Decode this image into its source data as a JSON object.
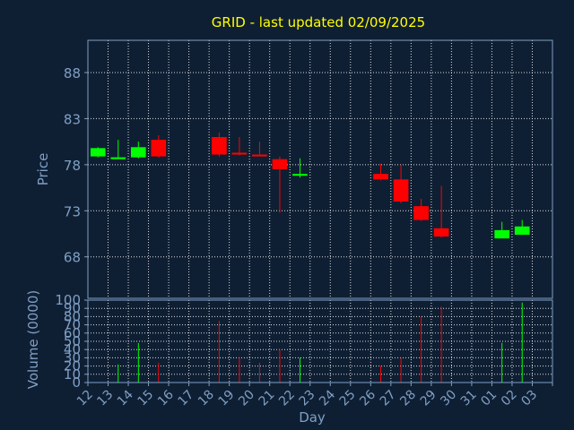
{
  "page": {
    "background": "#0f1f33",
    "text_color": "#7f9fc4",
    "title_color": "#ffff00",
    "grid_color": "#ffffff",
    "up_color": "#00ff00",
    "down_color": "#ff0000"
  },
  "chart_data": [
    {
      "type": "candlestick",
      "title": "GRID - last updated 02/09/2025",
      "ylabel": "Price",
      "ylim": [
        63.5,
        91.5
      ],
      "yticks": [
        68,
        73,
        78,
        83,
        88
      ],
      "grid": true,
      "x": [
        "12",
        "13",
        "14",
        "15",
        "16",
        "17",
        "18",
        "19",
        "20",
        "21",
        "22",
        "23",
        "24",
        "25",
        "26",
        "27",
        "28",
        "29",
        "30",
        "31",
        "01",
        "02",
        "03"
      ],
      "candles": [
        {
          "day": "12",
          "open": 78.9,
          "high": 79.9,
          "low": 78.8,
          "close": 79.8
        },
        {
          "day": "13",
          "open": 78.6,
          "high": 80.7,
          "low": 78.6,
          "close": 78.8
        },
        {
          "day": "14",
          "open": 78.8,
          "high": 80.5,
          "low": 78.7,
          "close": 79.9
        },
        {
          "day": "15",
          "open": 80.7,
          "high": 81.2,
          "low": 78.8,
          "close": 78.9
        },
        {
          "day": "18",
          "open": 81.0,
          "high": 81.5,
          "low": 78.9,
          "close": 79.1
        },
        {
          "day": "19",
          "open": 79.3,
          "high": 81.0,
          "low": 79.0,
          "close": 79.1
        },
        {
          "day": "20",
          "open": 79.1,
          "high": 80.5,
          "low": 78.9,
          "close": 78.9
        },
        {
          "day": "21",
          "open": 78.6,
          "high": 78.9,
          "low": 72.8,
          "close": 77.5
        },
        {
          "day": "22",
          "open": 76.8,
          "high": 78.7,
          "low": 76.6,
          "close": 77.0
        },
        {
          "day": "26",
          "open": 77.0,
          "high": 78.1,
          "low": 76.3,
          "close": 76.4
        },
        {
          "day": "27",
          "open": 76.4,
          "high": 78.0,
          "low": 73.8,
          "close": 74.0
        },
        {
          "day": "28",
          "open": 73.5,
          "high": 74.3,
          "low": 71.9,
          "close": 72.0
        },
        {
          "day": "29",
          "open": 71.1,
          "high": 75.7,
          "low": 70.1,
          "close": 70.2
        },
        {
          "day": "01",
          "open": 70.0,
          "high": 71.8,
          "low": 70.0,
          "close": 70.9
        },
        {
          "day": "02",
          "open": 70.4,
          "high": 72.0,
          "low": 70.4,
          "close": 71.3
        }
      ]
    },
    {
      "type": "bar",
      "ylabel": "Volume (0000)",
      "xlabel": "Day",
      "ylim": [
        0,
        100
      ],
      "yticks": [
        0,
        10,
        20,
        30,
        40,
        50,
        60,
        70,
        80,
        90,
        100
      ],
      "grid": true,
      "x": [
        "12",
        "13",
        "14",
        "15",
        "16",
        "17",
        "18",
        "19",
        "20",
        "21",
        "22",
        "23",
        "24",
        "25",
        "26",
        "27",
        "28",
        "29",
        "30",
        "31",
        "01",
        "02",
        "03"
      ],
      "bars": [
        {
          "day": "13",
          "value": 22,
          "direction": "up"
        },
        {
          "day": "14",
          "value": 48,
          "direction": "up"
        },
        {
          "day": "15",
          "value": 24,
          "direction": "down"
        },
        {
          "day": "18",
          "value": 75,
          "direction": "down"
        },
        {
          "day": "19",
          "value": 30,
          "direction": "down"
        },
        {
          "day": "20",
          "value": 24,
          "direction": "down"
        },
        {
          "day": "21",
          "value": 40,
          "direction": "down"
        },
        {
          "day": "22",
          "value": 30,
          "direction": "up"
        },
        {
          "day": "26",
          "value": 20,
          "direction": "down"
        },
        {
          "day": "27",
          "value": 30,
          "direction": "down"
        },
        {
          "day": "28",
          "value": 80,
          "direction": "down"
        },
        {
          "day": "29",
          "value": 92,
          "direction": "down"
        },
        {
          "day": "01",
          "value": 48,
          "direction": "up"
        },
        {
          "day": "02",
          "value": 97,
          "direction": "up"
        }
      ]
    }
  ]
}
